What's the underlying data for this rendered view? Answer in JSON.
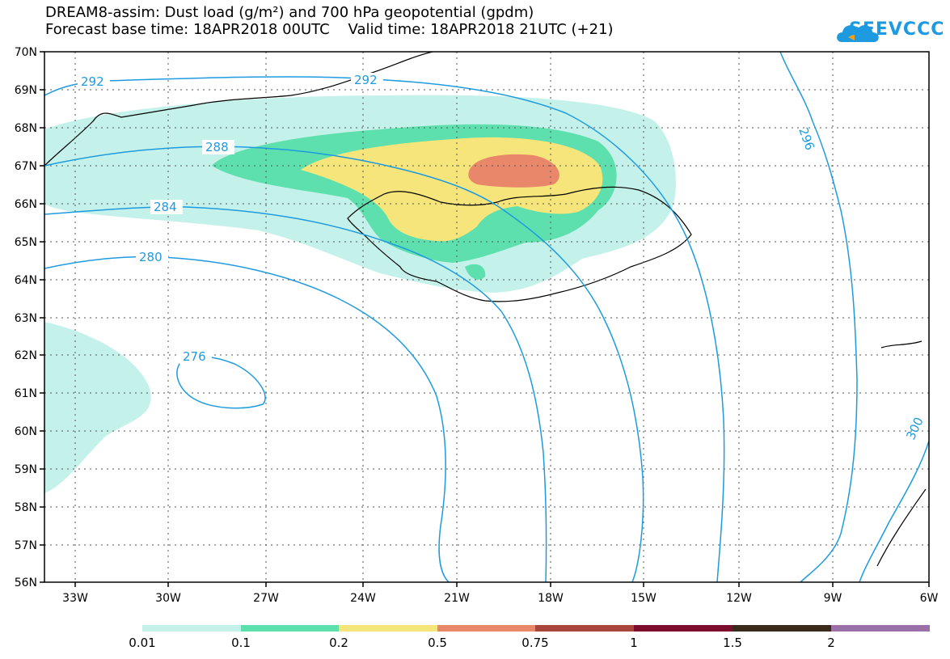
{
  "title": {
    "line1": "DREAM8-assim: Dust load (g/m²) and 700 hPa geopotential (gpdm)",
    "line2": "Forecast base time: 18APR2018 00UTC    Valid time: 18APR2018 21UTC (+21)"
  },
  "logo": {
    "text": "SEEVCCC",
    "icon": "cloud-icon",
    "color": "#1e9be0"
  },
  "axes": {
    "lat_labels": [
      "70N",
      "69N",
      "68N",
      "67N",
      "66N",
      "65N",
      "64N",
      "63N",
      "62N",
      "61N",
      "60N",
      "59N",
      "58N",
      "57N",
      "56N"
    ],
    "lon_labels": [
      "33W",
      "30W",
      "27W",
      "24W",
      "21W",
      "18W",
      "15W",
      "12W",
      "9W",
      "6W"
    ]
  },
  "contours": {
    "color": "#1e9be0",
    "labels": [
      "292",
      "292",
      "288",
      "284",
      "280",
      "276",
      "296",
      "300"
    ]
  },
  "colorbar": {
    "colors": [
      "#c4f2ea",
      "#5de0ad",
      "#f5e57a",
      "#e8876a",
      "#a8453c",
      "#7a0e2c",
      "#3b2a1c",
      "#9b6fa8"
    ],
    "labels": [
      "0.01",
      "0.1",
      "0.2",
      "0.5",
      "0.75",
      "1",
      "1.5",
      "2"
    ]
  }
}
